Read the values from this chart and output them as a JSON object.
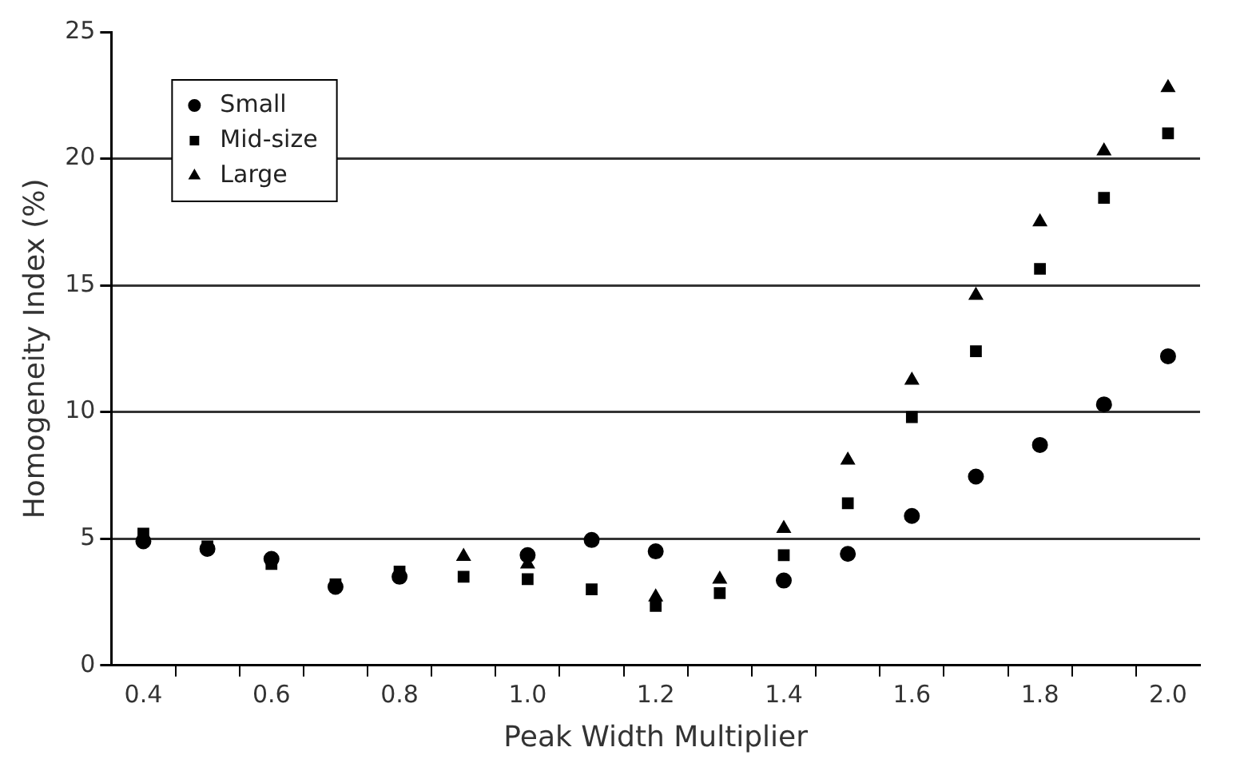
{
  "chart_data": {
    "type": "scatter",
    "xlabel": "Peak Width Multiplier",
    "ylabel": "Homogeneity Index (%)",
    "x": [
      0.4,
      0.5,
      0.6,
      0.7,
      0.8,
      0.9,
      1.0,
      1.1,
      1.2,
      1.3,
      1.4,
      1.5,
      1.6,
      1.7,
      1.8,
      1.9,
      2.0
    ],
    "series": [
      {
        "name": "Small",
        "color": "#000000",
        "marker": "circle",
        "values": [
          4.9,
          4.6,
          4.2,
          3.1,
          3.5,
          null,
          4.35,
          4.95,
          4.5,
          null,
          3.35,
          4.4,
          5.9,
          7.45,
          8.7,
          10.3,
          12.2
        ]
      },
      {
        "name": "Mid-size",
        "color": "#000000",
        "marker": "square",
        "values": [
          5.2,
          4.7,
          4.0,
          3.2,
          3.7,
          3.5,
          3.4,
          3.0,
          2.35,
          2.85,
          4.35,
          6.4,
          9.8,
          12.4,
          15.65,
          18.45,
          21.0
        ]
      },
      {
        "name": "Large",
        "color": "#000000",
        "marker": "triangle",
        "values": [
          null,
          null,
          null,
          null,
          null,
          4.3,
          4.0,
          null,
          2.7,
          3.4,
          5.4,
          8.1,
          11.25,
          14.6,
          17.5,
          20.3,
          22.8
        ]
      }
    ],
    "xlim": [
      0.35,
      2.05
    ],
    "xticks": [
      0.4,
      {
        "value": 0.45,
        "label": null
      },
      0.6,
      {
        "value": 0.55,
        "label": null
      },
      {
        "value": 0.65,
        "label": null
      },
      {
        "value": 0.75,
        "label": null
      },
      0.8,
      {
        "value": 0.85,
        "label": null
      },
      {
        "value": 0.95,
        "label": null
      },
      {
        "value": 1.0,
        "label": "1.0"
      },
      {
        "value": 1.05,
        "label": null
      },
      {
        "value": 1.15,
        "label": null
      },
      1.2,
      {
        "value": 1.25,
        "label": null
      },
      {
        "value": 1.35,
        "label": null
      },
      1.4,
      {
        "value": 1.45,
        "label": null
      },
      {
        "value": 1.55,
        "label": null
      },
      1.6,
      {
        "value": 1.65,
        "label": null
      },
      {
        "value": 1.75,
        "label": null
      },
      1.8,
      {
        "value": 1.85,
        "label": null
      },
      {
        "value": 1.95,
        "label": null
      },
      {
        "value": 2.0,
        "label": "2.0"
      }
    ],
    "ylim": [
      0,
      25
    ],
    "yticks": [
      0,
      5,
      10,
      15,
      20,
      25
    ],
    "grid": "y",
    "legend": "top left"
  }
}
